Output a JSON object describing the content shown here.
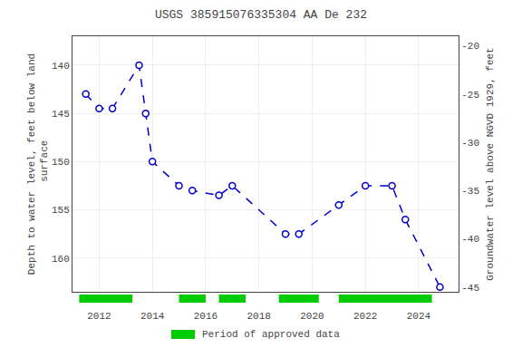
{
  "chart_data": {
    "type": "line",
    "title": "USGS 385915076335304 AA De 232",
    "ylabel": "Depth to water level, feet below land\n surface",
    "y2label": "Groundwater level above NGVD 1929, feet",
    "x": [
      2011.5,
      2012.0,
      2012.5,
      2013.5,
      2013.75,
      2014.0,
      2015.0,
      2015.5,
      2016.5,
      2017.0,
      2019.0,
      2019.5,
      2021.0,
      2022.0,
      2023.0,
      2023.5,
      2024.8
    ],
    "series": [
      {
        "color": "#0000cc",
        "line_style": "dashed",
        "marker": "circle",
        "values": [
          143.0,
          144.5,
          144.5,
          140.0,
          145.0,
          150.0,
          152.5,
          153.0,
          153.5,
          152.5,
          157.5,
          157.5,
          154.5,
          152.5,
          152.5,
          156.0,
          163.0
        ]
      },
      {
        "name": "Period of approved data",
        "type": "span",
        "color": "#00cc00",
        "ranges": [
          [
            2011.25,
            2013.25
          ],
          [
            2015.0,
            2016.0
          ],
          [
            2016.5,
            2017.5
          ],
          [
            2018.75,
            2020.25
          ],
          [
            2021.0,
            2024.5
          ]
        ]
      }
    ],
    "xlim": [
      2011.0,
      2025.5
    ],
    "xticks": [
      2012,
      2014,
      2016,
      2018,
      2020,
      2022,
      2024
    ],
    "ylim": [
      163.5,
      137.0
    ],
    "yticks": [
      140,
      145,
      150,
      155,
      160
    ],
    "y2lim": [
      -45.5,
      -19.0
    ],
    "y2ticks": [
      -20,
      -25,
      -30,
      -35,
      -40,
      -45
    ],
    "grid": true
  }
}
